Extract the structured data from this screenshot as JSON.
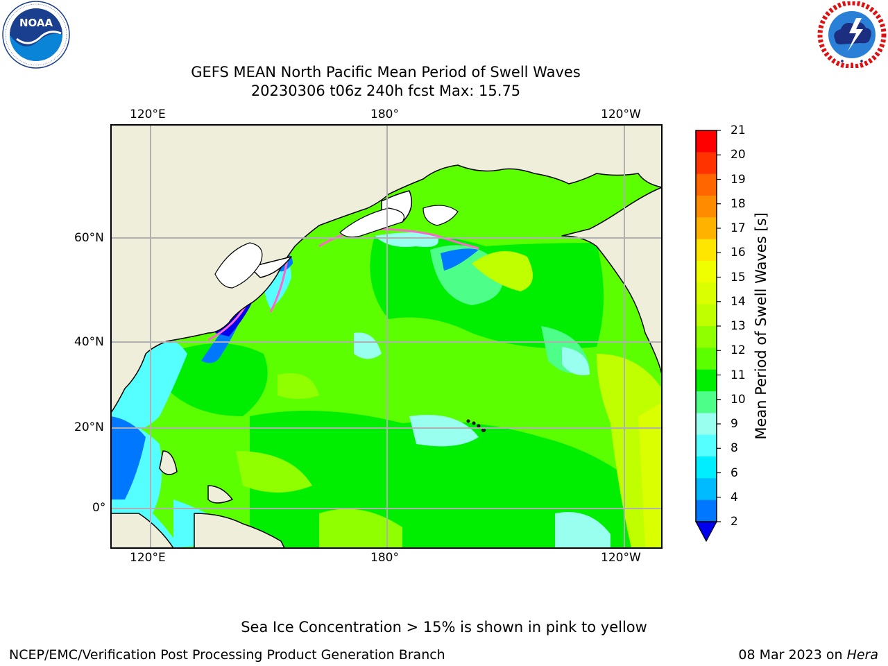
{
  "title": {
    "line1": "GEFS MEAN North Pacific Mean Period of Swell Waves",
    "line2": "20230306 t06z 240h fcst   Max: 15.75"
  },
  "logos": {
    "left": {
      "text": "NOAA",
      "ring_text": "NATIONAL OCEANIC AND ATMOSPHERIC ADMINISTRATION · U.S. DEPARTMENT OF COMMERCE"
    },
    "right": {
      "ring_text": "NATIONAL WEATHER SERVICE"
    }
  },
  "axes": {
    "lon_ticks": [
      "120°E",
      "180°",
      "120°W"
    ],
    "lat_ticks": [
      "60°N",
      "40°N",
      "20°N",
      "0°"
    ],
    "grid": true
  },
  "colorbar": {
    "label": "Mean Period of Swell Waves [s]",
    "ticks": [
      "21",
      "20",
      "19",
      "18",
      "17",
      "16",
      "15",
      "14",
      "13",
      "12",
      "11",
      "10",
      "9",
      "8",
      "6",
      "4",
      "2"
    ],
    "colors_top_to_bottom": [
      "#ff0000",
      "#ff3300",
      "#ff6600",
      "#ff8c00",
      "#ffb300",
      "#ffe600",
      "#f0ff00",
      "#d9ff00",
      "#c0ff00",
      "#90ff00",
      "#5cff00",
      "#00ee00",
      "#4dff88",
      "#99ffee",
      "#55ffff",
      "#00eeff",
      "#00bbff",
      "#0077ff"
    ],
    "extend_color": "#0000ee"
  },
  "colors": {
    "land": "#efeedb",
    "ocean_main": "#5cff00",
    "ocean_alt": "#00ee00",
    "ocean_light": "#90ff00",
    "ocean_yellow": "#d9ff00",
    "ocean_cyan": "#55ffff",
    "ocean_aqua": "#4dff88",
    "ocean_blue": "#0077ff",
    "ocean_dark_blue": "#0000ee",
    "sea_ice": "#ff66cc"
  },
  "footer": {
    "note": "Sea Ice Concentration > 15% is shown in pink to yellow",
    "credit": "NCEP/EMC/Verification Post Processing Product Generation Branch",
    "date": "08 Mar 2023 on ",
    "machine": "Hera"
  }
}
